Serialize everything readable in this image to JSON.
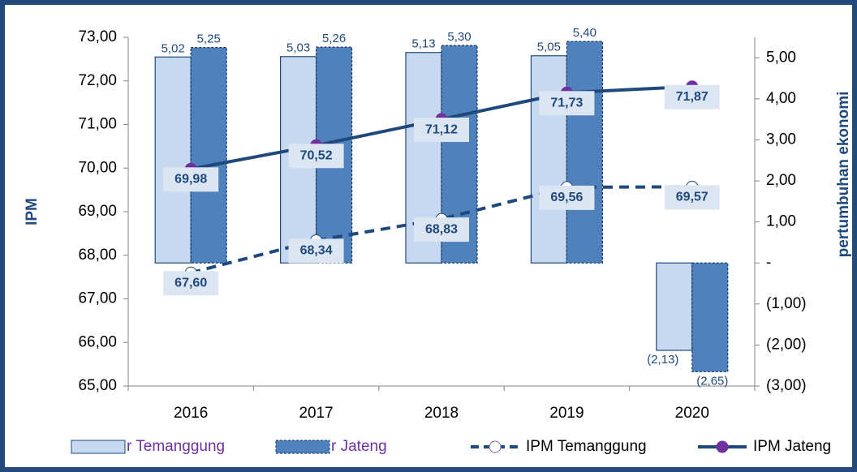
{
  "chart_data": {
    "type": "combo",
    "categories": [
      "2016",
      "2017",
      "2018",
      "2019",
      "2020"
    ],
    "y_label": "IPM",
    "y2_label": "pertumbuhan ekonomi",
    "ylim": [
      65,
      73
    ],
    "yticks": [
      {
        "value": 65,
        "label": "65,00"
      },
      {
        "value": 66,
        "label": "66,00"
      },
      {
        "value": 67,
        "label": "67,00"
      },
      {
        "value": 68,
        "label": "68,00"
      },
      {
        "value": 69,
        "label": "69,00"
      },
      {
        "value": 70,
        "label": "70,00"
      },
      {
        "value": 71,
        "label": "71,00"
      },
      {
        "value": 72,
        "label": "72,00"
      },
      {
        "value": 73,
        "label": "73,00"
      }
    ],
    "y2lim": [
      -3,
      5.5
    ],
    "y2ticks": [
      {
        "value": -3,
        "label": "(3,00)"
      },
      {
        "value": -2,
        "label": "(2,00)"
      },
      {
        "value": -1,
        "label": "(1,00)"
      },
      {
        "value": 0,
        "label": "-"
      },
      {
        "value": 1,
        "label": "1,00"
      },
      {
        "value": 2,
        "label": "2,00"
      },
      {
        "value": 3,
        "label": "3,00"
      },
      {
        "value": 4,
        "label": "4,00"
      },
      {
        "value": 5,
        "label": "5,00"
      }
    ],
    "series": [
      {
        "name": "r Temanggung",
        "type": "bar",
        "axis": "y2",
        "color": "#c6d9f1",
        "style": "solid",
        "values": [
          5.02,
          5.03,
          5.13,
          5.05,
          -2.13
        ],
        "value_labels": [
          "5,02",
          "5,03",
          "5,13",
          "5,05",
          "(2,13)"
        ]
      },
      {
        "name": "r Jateng",
        "type": "bar",
        "axis": "y2",
        "color": "#4f81bd",
        "style": "dashed",
        "values": [
          5.25,
          5.26,
          5.3,
          5.4,
          -2.65
        ],
        "value_labels": [
          "5,25",
          "5,26",
          "5,30",
          "5,40",
          "(2,65)"
        ]
      },
      {
        "name": "IPM Temanggung",
        "type": "line",
        "color": "#1f497d",
        "style": "dashed",
        "values": [
          67.6,
          68.34,
          68.83,
          69.56,
          69.57
        ],
        "value_labels": [
          "67,60",
          "68,34",
          "68,83",
          "69,56",
          "69,57"
        ]
      },
      {
        "name": "IPM Jateng",
        "type": "line",
        "color": "#1f497d",
        "style": "solid",
        "values": [
          69.98,
          70.52,
          71.12,
          71.73,
          71.87
        ],
        "value_labels": [
          "69,98",
          "70,52",
          "71,12",
          "71,73",
          "71,87"
        ]
      }
    ]
  }
}
